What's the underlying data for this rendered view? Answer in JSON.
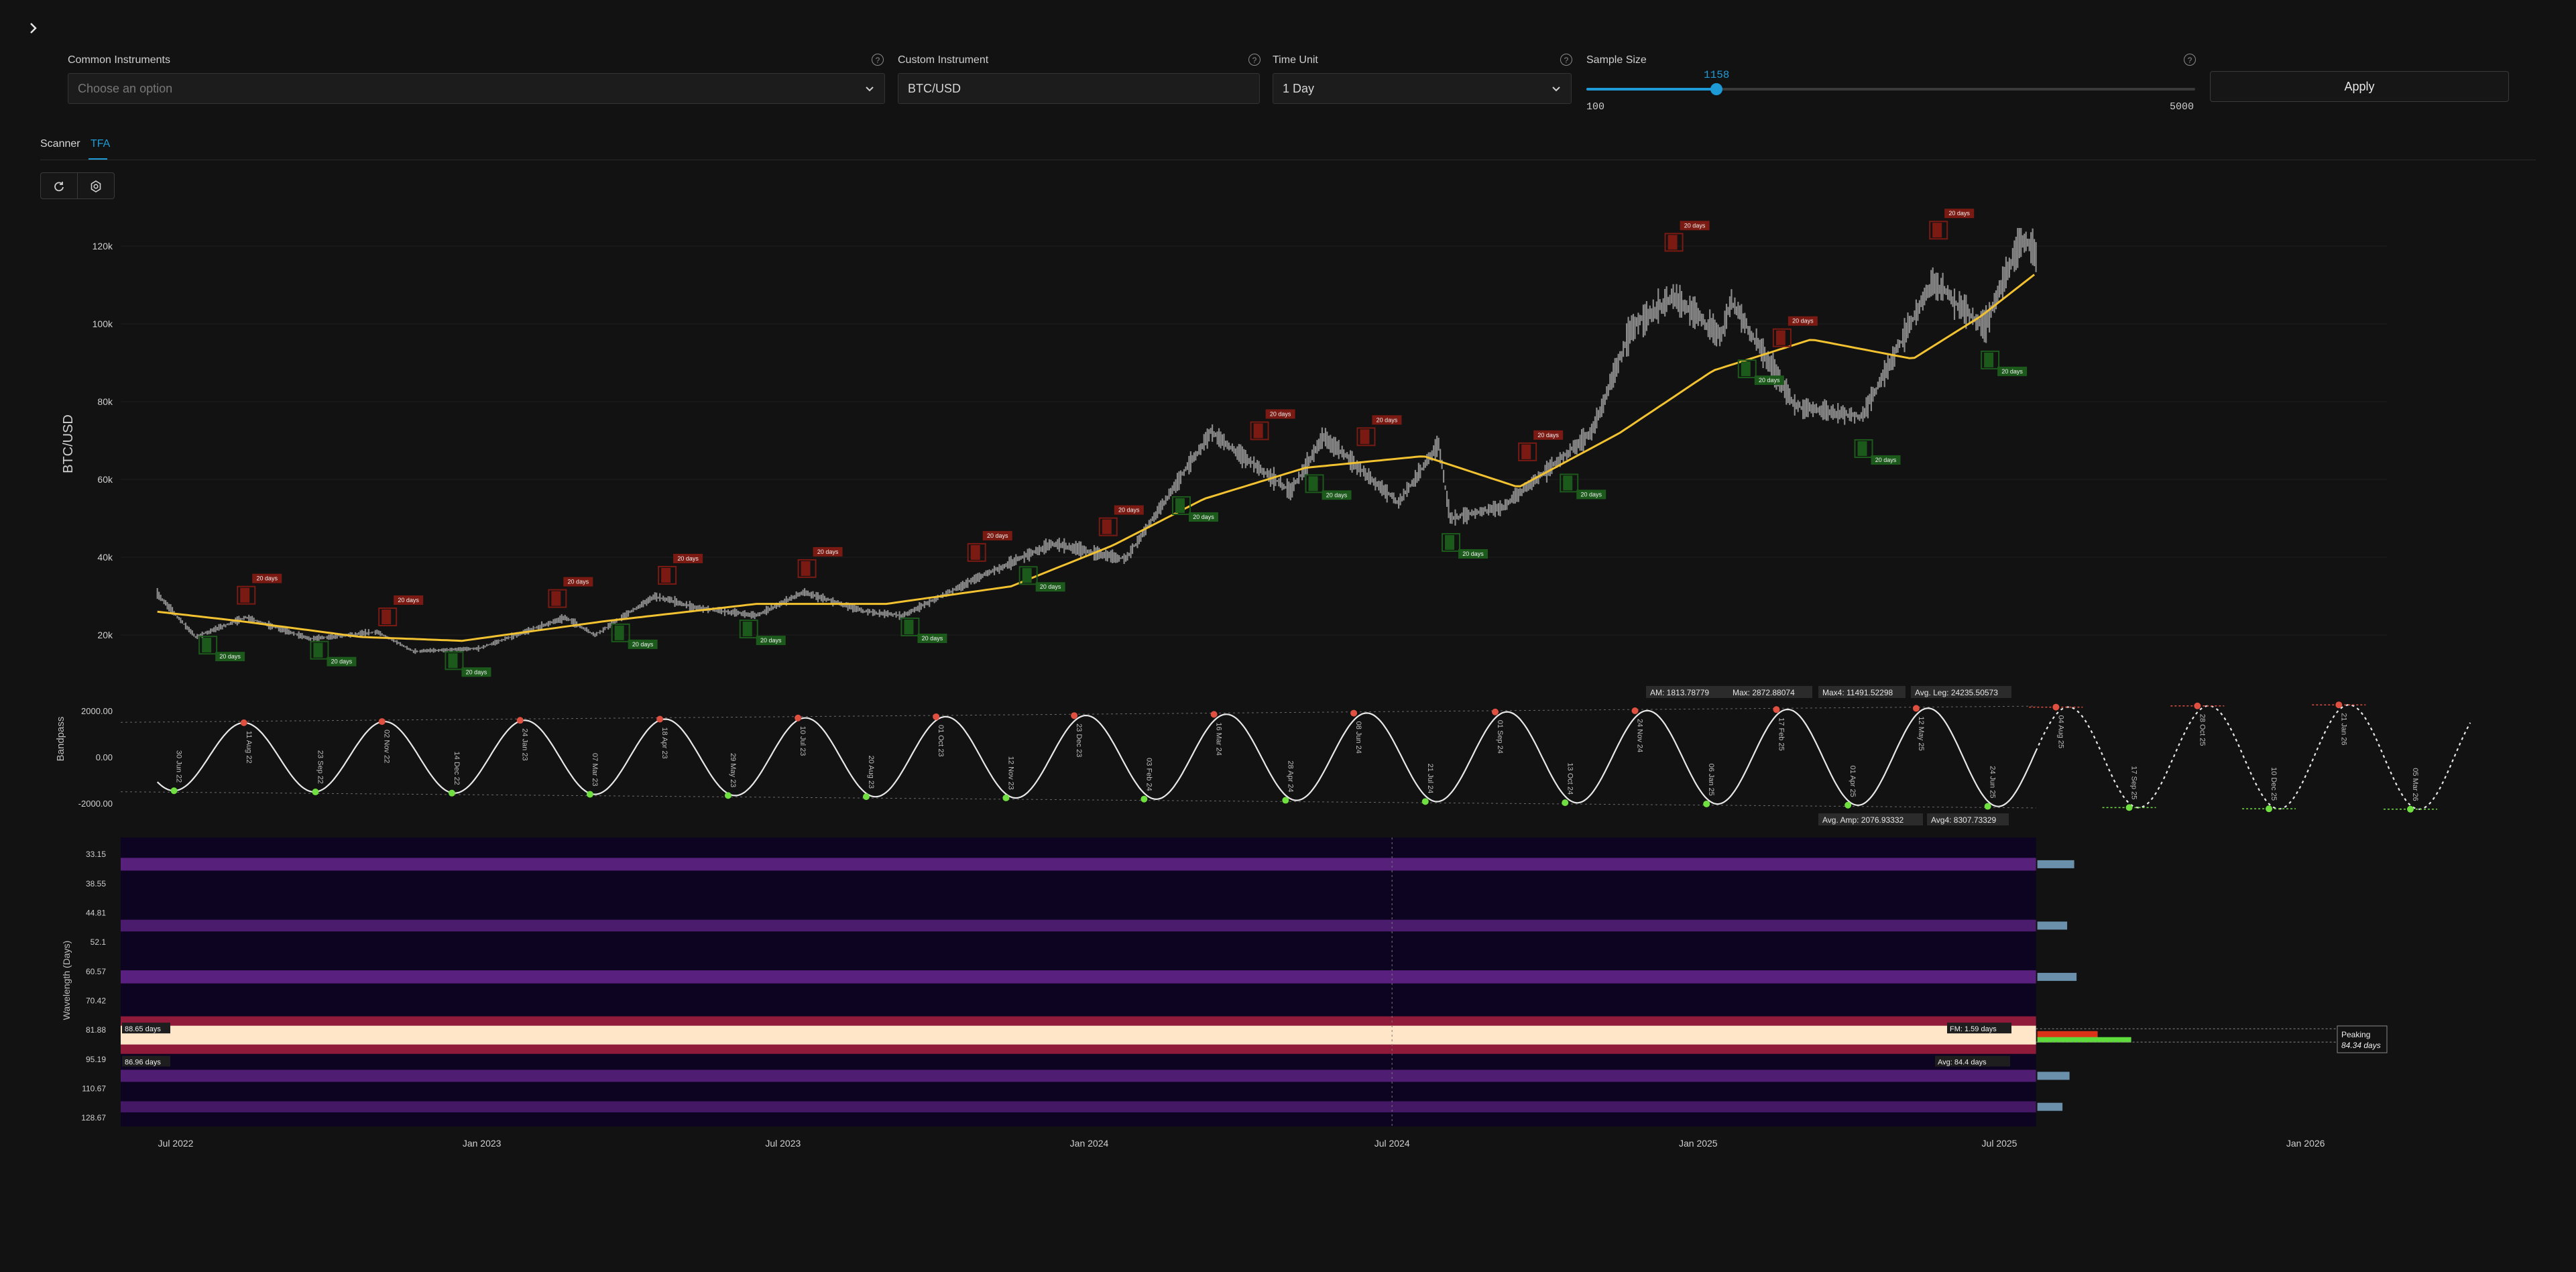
{
  "controls": {
    "common_instruments": {
      "label": "Common Instruments",
      "placeholder": "Choose an option"
    },
    "custom_instrument": {
      "label": "Custom Instrument",
      "value": "BTC/USD"
    },
    "time_unit": {
      "label": "Time Unit",
      "value": "1 Day"
    },
    "sample_size": {
      "label": "Sample Size",
      "value": "1158",
      "min": "100",
      "max": "5000",
      "fill_fraction": 0.21
    },
    "apply_label": "Apply",
    "help_glyph": "?"
  },
  "tabs": [
    {
      "label": "Scanner",
      "active": false
    },
    {
      "label": "TFA",
      "active": true
    }
  ],
  "toolbar": {
    "icons": [
      "refresh-icon",
      "settings-icon"
    ]
  },
  "colors": {
    "accent": "#1e9bd7",
    "background": "#121212",
    "price": "#8a8a8a",
    "trend": "#f2c230",
    "peak": "#e05040",
    "trough": "#70e040",
    "peak_box": "#7a1a12",
    "trough_box": "#1c5a1c"
  },
  "chart_data": [
    {
      "type": "line",
      "panel": "price",
      "ylabel": "BTC/USD",
      "y_ticks": [
        "20k",
        "40k",
        "60k",
        "80k",
        "100k",
        "120k"
      ],
      "ylim": [
        12000,
        125000
      ],
      "series": [
        {
          "name": "",
          "points": [
            [
              "2022-06-20",
              30500
            ],
            [
              "2022-07-13",
              19500
            ],
            [
              "2022-08-12",
              24500
            ],
            [
              "2022-09-20",
              19000
            ],
            [
              "2022-10-30",
              20800
            ],
            [
              "2022-11-21",
              15800
            ],
            [
              "2022-12-30",
              16500
            ],
            [
              "2023-02-20",
              24500
            ],
            [
              "2023-03-10",
              20000
            ],
            [
              "2023-04-15",
              30000
            ],
            [
              "2023-05-10",
              27000
            ],
            [
              "2023-06-15",
              25000
            ],
            [
              "2023-07-13",
              31000
            ],
            [
              "2023-08-20",
              26000
            ],
            [
              "2023-09-11",
              25000
            ],
            [
              "2023-10-25",
              34500
            ],
            [
              "2023-12-10",
              43500
            ],
            [
              "2024-01-23",
              39500
            ],
            [
              "2024-03-14",
              72000
            ],
            [
              "2024-05-01",
              57000
            ],
            [
              "2024-05-21",
              71000
            ],
            [
              "2024-07-05",
              54000
            ],
            [
              "2024-07-29",
              69000
            ],
            [
              "2024-08-05",
              50000
            ],
            [
              "2024-09-06",
              53000
            ],
            [
              "2024-10-29",
              72000
            ],
            [
              "2024-11-22",
              99000
            ],
            [
              "2024-12-17",
              107000
            ],
            [
              "2025-01-15",
              97000
            ],
            [
              "2025-01-21",
              106000
            ],
            [
              "2025-02-28",
              79000
            ],
            [
              "2025-04-09",
              76000
            ],
            [
              "2025-05-22",
              111000
            ],
            [
              "2025-06-22",
              99000
            ],
            [
              "2025-07-14",
              122000
            ],
            [
              "2025-07-23",
              118000
            ]
          ]
        },
        {
          "name": "",
          "points": [
            [
              "2022-06-20",
              26000
            ],
            [
              "2022-08-10",
              23500
            ],
            [
              "2022-10-20",
              19500
            ],
            [
              "2022-12-20",
              18500
            ],
            [
              "2023-03-15",
              23500
            ],
            [
              "2023-06-15",
              28000
            ],
            [
              "2023-09-01",
              28000
            ],
            [
              "2023-11-15",
              32500
            ],
            [
              "2024-01-15",
              43000
            ],
            [
              "2024-03-10",
              55000
            ],
            [
              "2024-05-10",
              63000
            ],
            [
              "2024-07-20",
              66000
            ],
            [
              "2024-09-15",
              58000
            ],
            [
              "2024-11-15",
              72000
            ],
            [
              "2025-01-10",
              88000
            ],
            [
              "2025-03-10",
              96000
            ],
            [
              "2025-05-10",
              91000
            ],
            [
              "2025-06-20",
              102000
            ],
            [
              "2025-07-23",
              113000
            ]
          ]
        }
      ],
      "markers": [
        {
          "date": "2022-07-20",
          "label": "20 days",
          "kind": "trough"
        },
        {
          "date": "2022-08-12",
          "label": "20 days",
          "kind": "peak"
        },
        {
          "date": "2022-09-25",
          "label": "20 days",
          "kind": "trough"
        },
        {
          "date": "2022-11-05",
          "label": "20 days",
          "kind": "peak"
        },
        {
          "date": "2022-12-15",
          "label": "20 days",
          "kind": "trough"
        },
        {
          "date": "2023-02-15",
          "label": "20 days",
          "kind": "peak"
        },
        {
          "date": "2023-03-25",
          "label": "20 days",
          "kind": "trough"
        },
        {
          "date": "2023-04-22",
          "label": "20 days",
          "kind": "peak"
        },
        {
          "date": "2023-06-10",
          "label": "20 days",
          "kind": "trough"
        },
        {
          "date": "2023-07-15",
          "label": "20 days",
          "kind": "peak"
        },
        {
          "date": "2023-09-15",
          "label": "20 days",
          "kind": "trough"
        },
        {
          "date": "2023-10-25",
          "label": "20 days",
          "kind": "peak"
        },
        {
          "date": "2023-11-25",
          "label": "20 days",
          "kind": "trough"
        },
        {
          "date": "2024-01-12",
          "label": "20 days",
          "kind": "peak"
        },
        {
          "date": "2024-02-25",
          "label": "20 days",
          "kind": "trough"
        },
        {
          "date": "2024-04-12",
          "label": "20 days",
          "kind": "peak"
        },
        {
          "date": "2024-05-15",
          "label": "20 days",
          "kind": "trough"
        },
        {
          "date": "2024-06-15",
          "label": "20 days",
          "kind": "peak"
        },
        {
          "date": "2024-08-05",
          "label": "20 days",
          "kind": "trough"
        },
        {
          "date": "2024-09-20",
          "label": "20 days",
          "kind": "peak"
        },
        {
          "date": "2024-10-15",
          "label": "20 days",
          "kind": "trough"
        },
        {
          "date": "2024-12-17",
          "label": "20 days",
          "kind": "peak"
        },
        {
          "date": "2025-01-30",
          "label": "20 days",
          "kind": "trough"
        },
        {
          "date": "2025-02-20",
          "label": "20 days",
          "kind": "peak"
        },
        {
          "date": "2025-04-10",
          "label": "20 days",
          "kind": "trough"
        },
        {
          "date": "2025-05-25",
          "label": "20 days",
          "kind": "peak"
        },
        {
          "date": "2025-06-25",
          "label": "20 days",
          "kind": "trough"
        }
      ]
    },
    {
      "type": "line",
      "panel": "bandpass",
      "ylabel": "Bandpass",
      "y_ticks": [
        "2000.00",
        "0.00",
        "-2000.00"
      ],
      "ylim": [
        -2400,
        2400
      ],
      "period_days": 84.34,
      "anchor_peak": "2022-08-11",
      "start": "2022-06-20",
      "end": "2025-07-23",
      "forecast_end": "2026-04-10",
      "extremes": [
        {
          "date": "2022-06-30",
          "label": "30 Jun 22",
          "kind": "trough"
        },
        {
          "date": "2022-08-11",
          "label": "11 Aug 22",
          "kind": "peak"
        },
        {
          "date": "2022-09-23",
          "label": "23 Sep 22",
          "kind": "trough"
        },
        {
          "date": "2022-11-02",
          "label": "02 Nov 22",
          "kind": "peak"
        },
        {
          "date": "2022-12-14",
          "label": "14 Dec 22",
          "kind": "trough"
        },
        {
          "date": "2023-01-24",
          "label": "24 Jan 23",
          "kind": "peak"
        },
        {
          "date": "2023-03-07",
          "label": "07 Mar 23",
          "kind": "trough"
        },
        {
          "date": "2023-04-18",
          "label": "18 Apr 23",
          "kind": "peak"
        },
        {
          "date": "2023-05-29",
          "label": "29 May 23",
          "kind": "trough"
        },
        {
          "date": "2023-07-10",
          "label": "10 Jul 23",
          "kind": "peak"
        },
        {
          "date": "2023-08-20",
          "label": "20 Aug 23",
          "kind": "trough"
        },
        {
          "date": "2023-10-01",
          "label": "01 Oct 23",
          "kind": "peak"
        },
        {
          "date": "2023-11-12",
          "label": "12 Nov 23",
          "kind": "trough"
        },
        {
          "date": "2023-12-23",
          "label": "23 Dec 23",
          "kind": "peak"
        },
        {
          "date": "2024-02-03",
          "label": "03 Feb 24",
          "kind": "trough"
        },
        {
          "date": "2024-03-16",
          "label": "16 Mar 24",
          "kind": "peak"
        },
        {
          "date": "2024-04-28",
          "label": "28 Apr 24",
          "kind": "trough"
        },
        {
          "date": "2024-06-08",
          "label": "08 Jun 24",
          "kind": "peak"
        },
        {
          "date": "2024-07-21",
          "label": "21 Jul 24",
          "kind": "trough"
        },
        {
          "date": "2024-09-01",
          "label": "01 Sep 24",
          "kind": "peak"
        },
        {
          "date": "2024-10-13",
          "label": "13 Oct 24",
          "kind": "trough"
        },
        {
          "date": "2024-11-24",
          "label": "24 Nov 24",
          "kind": "peak"
        },
        {
          "date": "2025-01-06",
          "label": "06 Jan 25",
          "kind": "trough"
        },
        {
          "date": "2025-02-17",
          "label": "17 Feb 25",
          "kind": "peak"
        },
        {
          "date": "2025-04-01",
          "label": "01 Apr 25",
          "kind": "trough"
        },
        {
          "date": "2025-05-12",
          "label": "12 May 25",
          "kind": "peak"
        },
        {
          "date": "2025-06-24",
          "label": "24 Jun 25",
          "kind": "trough"
        },
        {
          "date": "2025-08-04",
          "label": "04 Aug 25",
          "kind": "peak"
        },
        {
          "date": "2025-09-17",
          "label": "17 Sep 25",
          "kind": "trough"
        },
        {
          "date": "2025-10-28",
          "label": "28 Oct 25",
          "kind": "peak"
        },
        {
          "date": "2025-12-10",
          "label": "10 Dec 25",
          "kind": "trough"
        },
        {
          "date": "2026-01-21",
          "label": "21 Jan 26",
          "kind": "peak"
        },
        {
          "date": "2026-03-05",
          "label": "05 Mar 26",
          "kind": "trough"
        }
      ],
      "stats_top": {
        "am": "AM: 1813.78779",
        "max": "Max: 2872.88074",
        "max4": "Max4: 11491.52298",
        "avg_leg": "Avg. Leg: 24235.50573"
      },
      "stats_bottom": {
        "avg_amp": "Avg. Amp: 2076.93332",
        "avg4": "Avg4: 8307.73329"
      }
    },
    {
      "type": "heatmap",
      "panel": "spectrogram",
      "ylabel": "Wavelength (Days)",
      "y_ticks": [
        "33.15",
        "38.55",
        "44.81",
        "52.1",
        "60.57",
        "70.42",
        "81.88",
        "95.19",
        "110.67",
        "128.67"
      ],
      "bands": [
        {
          "wavelength": 84.34,
          "strength": 1.0
        },
        {
          "wavelength": 62.5,
          "strength": 0.55
        },
        {
          "wavelength": 35.0,
          "strength": 0.5
        },
        {
          "wavelength": 48.0,
          "strength": 0.35
        },
        {
          "wavelength": 104.0,
          "strength": 0.4
        },
        {
          "wavelength": 122.0,
          "strength": 0.25
        }
      ],
      "labels": {
        "upper": "88.65 days",
        "lower": "86.96 days",
        "fm": "FM: 1.59 days",
        "avg": "Avg: 84.4 days"
      },
      "peaking": {
        "title": "Peaking",
        "value": "84.34 days"
      }
    }
  ],
  "x_axis": [
    "Jul 2022",
    "Jan 2023",
    "Jul 2023",
    "Jan 2024",
    "Jul 2024",
    "Jan 2025",
    "Jul 2025",
    "Jan 2026"
  ]
}
